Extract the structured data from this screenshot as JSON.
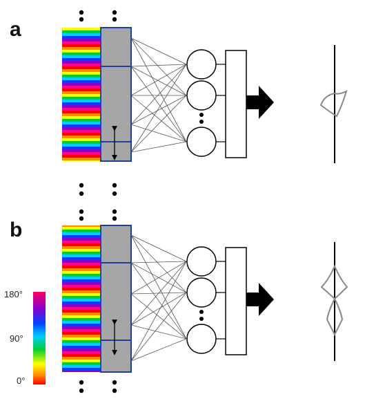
{
  "panels": [
    {
      "label": "a",
      "profile": "single"
    },
    {
      "label": "b",
      "profile": "double"
    }
  ],
  "colorbar": {
    "top_label": "180°",
    "mid_label": "90°",
    "bottom_label": "0°"
  },
  "colors": {
    "stripe_palette": [
      "#ff0000",
      "#ff8800",
      "#ffff00",
      "#00cc33",
      "#00ccff",
      "#0044ff",
      "#8800cc",
      "#ff0099"
    ],
    "grey_block": "#a6a6a6",
    "blue_line": "#1f3f9f",
    "connection_line": "#555555",
    "profile_outline": "#888888"
  },
  "icons": {
    "arrow": "right-arrow-icon",
    "double_arrow": "vertical-double-arrow-icon",
    "ellipsis": "vertical-ellipsis-icon"
  }
}
